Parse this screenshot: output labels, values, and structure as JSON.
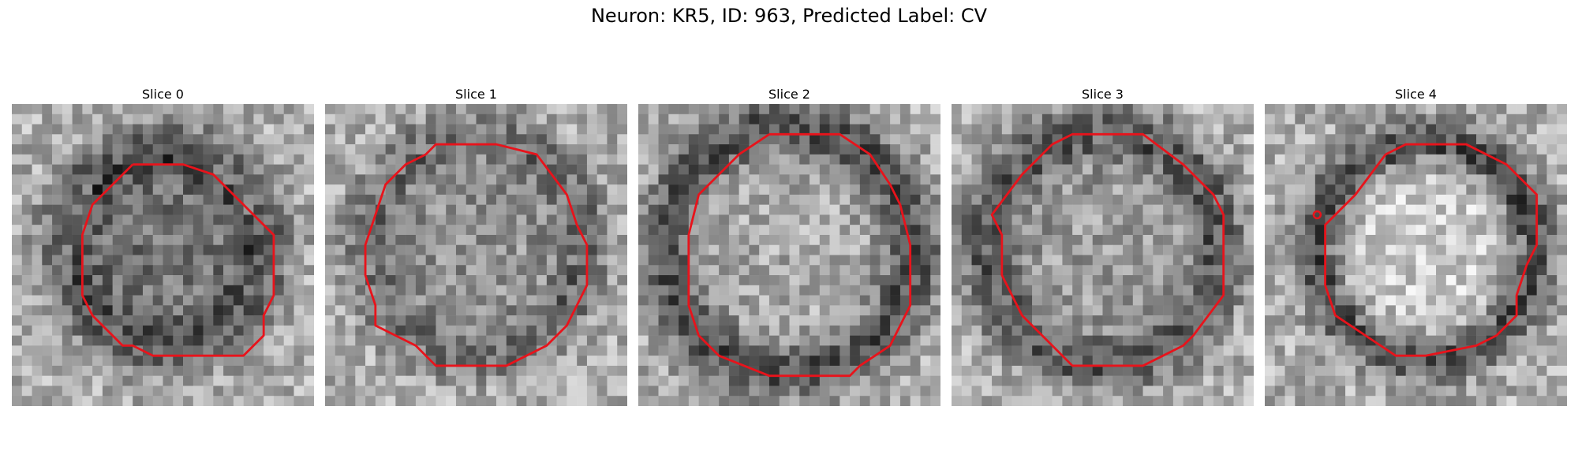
{
  "figure": {
    "title": "Neuron: KR5, ID: 963, Predicted Label: CV"
  },
  "colors": {
    "contour": "#e8131b",
    "background": "#ffffff"
  },
  "grid_cells": 30,
  "panels": [
    {
      "title": "Slice 0",
      "seed": 11,
      "membrane": {
        "cx": 15.0,
        "cy": 14.3,
        "r": 10.3,
        "dark": 80,
        "width": 1.8
      },
      "interior_dark": 60,
      "contour": [
        [
          12,
          6
        ],
        [
          17,
          6
        ],
        [
          20,
          7
        ],
        [
          26,
          13
        ],
        [
          26,
          19
        ],
        [
          25,
          21
        ],
        [
          25,
          23
        ],
        [
          23,
          25
        ],
        [
          14,
          25
        ],
        [
          12,
          24
        ],
        [
          11,
          24
        ],
        [
          8,
          21
        ],
        [
          7,
          19
        ],
        [
          7,
          13
        ],
        [
          8,
          10
        ],
        [
          12,
          6
        ]
      ]
    },
    {
      "title": "Slice 1",
      "seed": 23,
      "membrane": {
        "cx": 15.0,
        "cy": 14.0,
        "r": 11.3,
        "dark": 60,
        "width": 1.6
      },
      "interior_dark": 30,
      "contour": [
        [
          10,
          5
        ],
        [
          11,
          4
        ],
        [
          17,
          4
        ],
        [
          21,
          5
        ],
        [
          24,
          9
        ],
        [
          25,
          12
        ],
        [
          26,
          14
        ],
        [
          26,
          18
        ],
        [
          24,
          22
        ],
        [
          22,
          24
        ],
        [
          18,
          26
        ],
        [
          11,
          26
        ],
        [
          9,
          24
        ],
        [
          5,
          22
        ],
        [
          5,
          20
        ],
        [
          4,
          17
        ],
        [
          4,
          14
        ],
        [
          5,
          11
        ],
        [
          6,
          8
        ],
        [
          8,
          6
        ],
        [
          10,
          5
        ]
      ]
    },
    {
      "title": "Slice 2",
      "seed": 37,
      "membrane": {
        "cx": 15.0,
        "cy": 14.5,
        "r": 12.3,
        "dark": 95,
        "width": 2.0
      },
      "interior_dark": 5,
      "contour": [
        [
          13,
          3
        ],
        [
          20,
          3
        ],
        [
          23,
          5
        ],
        [
          25,
          8
        ],
        [
          26,
          10
        ],
        [
          27,
          14
        ],
        [
          27,
          20
        ],
        [
          26,
          22
        ],
        [
          25,
          24
        ],
        [
          22,
          26
        ],
        [
          21,
          27
        ],
        [
          13,
          27
        ],
        [
          8,
          25
        ],
        [
          6,
          23
        ],
        [
          5,
          20
        ],
        [
          5,
          13
        ],
        [
          6,
          9
        ],
        [
          8,
          7
        ],
        [
          10,
          5
        ],
        [
          13,
          3
        ]
      ]
    },
    {
      "title": "Slice 3",
      "seed": 51,
      "membrane": {
        "cx": 15.0,
        "cy": 14.3,
        "r": 11.8,
        "dark": 85,
        "width": 1.9
      },
      "interior_dark": 20,
      "contour": [
        [
          10,
          4
        ],
        [
          12,
          3
        ],
        [
          19,
          3
        ],
        [
          23,
          6
        ],
        [
          26,
          9
        ],
        [
          27,
          11
        ],
        [
          27,
          19
        ],
        [
          24,
          23
        ],
        [
          23,
          24
        ],
        [
          19,
          26
        ],
        [
          12,
          26
        ],
        [
          10,
          24
        ],
        [
          7,
          21
        ],
        [
          5,
          17
        ],
        [
          5,
          13
        ],
        [
          4,
          11
        ],
        [
          7,
          7
        ],
        [
          8,
          6
        ],
        [
          10,
          4
        ]
      ]
    },
    {
      "title": "Slice 4",
      "seed": 67,
      "membrane": {
        "cx": 16.0,
        "cy": 14.5,
        "r": 10.6,
        "dark": 100,
        "width": 1.8
      },
      "interior_dark": -30,
      "contour": [
        [
          12,
          5
        ],
        [
          14,
          4
        ],
        [
          20,
          4
        ],
        [
          22,
          5
        ],
        [
          24,
          6
        ],
        [
          26,
          8
        ],
        [
          27,
          9
        ],
        [
          27,
          14
        ],
        [
          26,
          16
        ],
        [
          25,
          19
        ],
        [
          25,
          21
        ],
        [
          24,
          22
        ],
        [
          23,
          23
        ],
        [
          21,
          24
        ],
        [
          16,
          25
        ],
        [
          13,
          25
        ],
        [
          10,
          23
        ],
        [
          7,
          21
        ],
        [
          6,
          18
        ],
        [
          6,
          12
        ],
        [
          9,
          9
        ],
        [
          12,
          5
        ]
      ],
      "marker": [
        5.2,
        11.0
      ]
    }
  ]
}
